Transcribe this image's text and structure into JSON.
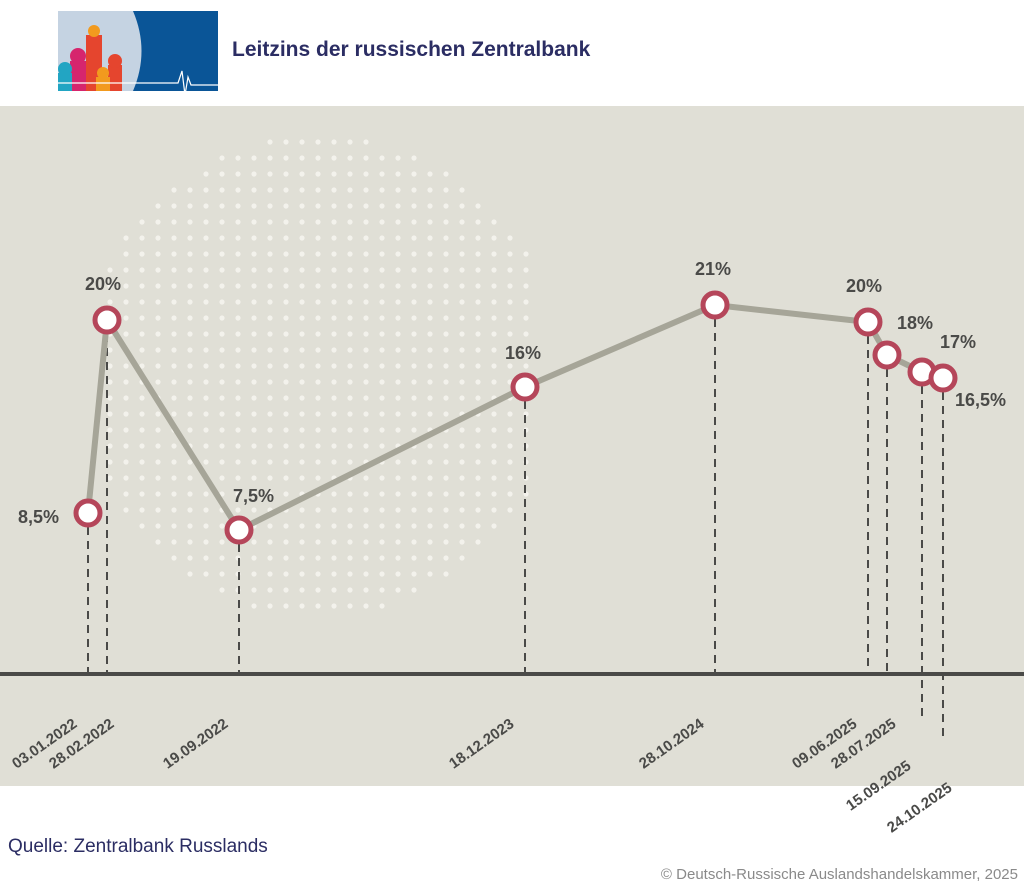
{
  "header": {
    "title": "Leitzins der russischen Zentralbank"
  },
  "footer": {
    "source": "Quelle: Zentralbank Russlands",
    "copyright": "© Deutsch-Russische Auslandshandelskammer, 2025"
  },
  "colors": {
    "title": "#2b2d63",
    "line": "#a6a598",
    "marker": "#b5465a",
    "axis": "#4a4a48",
    "background": "#e0dfd6"
  },
  "chart_data": {
    "type": "line",
    "title": "Leitzins der russischen Zentralbank",
    "x": [
      "03.01.2022",
      "28.02.2022",
      "19.09.2022",
      "18.12.2023",
      "28.10.2024",
      "09.06.2025",
      "28.07.2025",
      "15.09.2025",
      "24.10.2025"
    ],
    "values": [
      8.5,
      20,
      7.5,
      16,
      21,
      20,
      18,
      17,
      16.5
    ],
    "data_labels": [
      "8,5%",
      "20%",
      "7,5%",
      "16%",
      "21%",
      "20%",
      "18%",
      "17%",
      "16,5%"
    ],
    "grid": false,
    "legend": "none"
  }
}
